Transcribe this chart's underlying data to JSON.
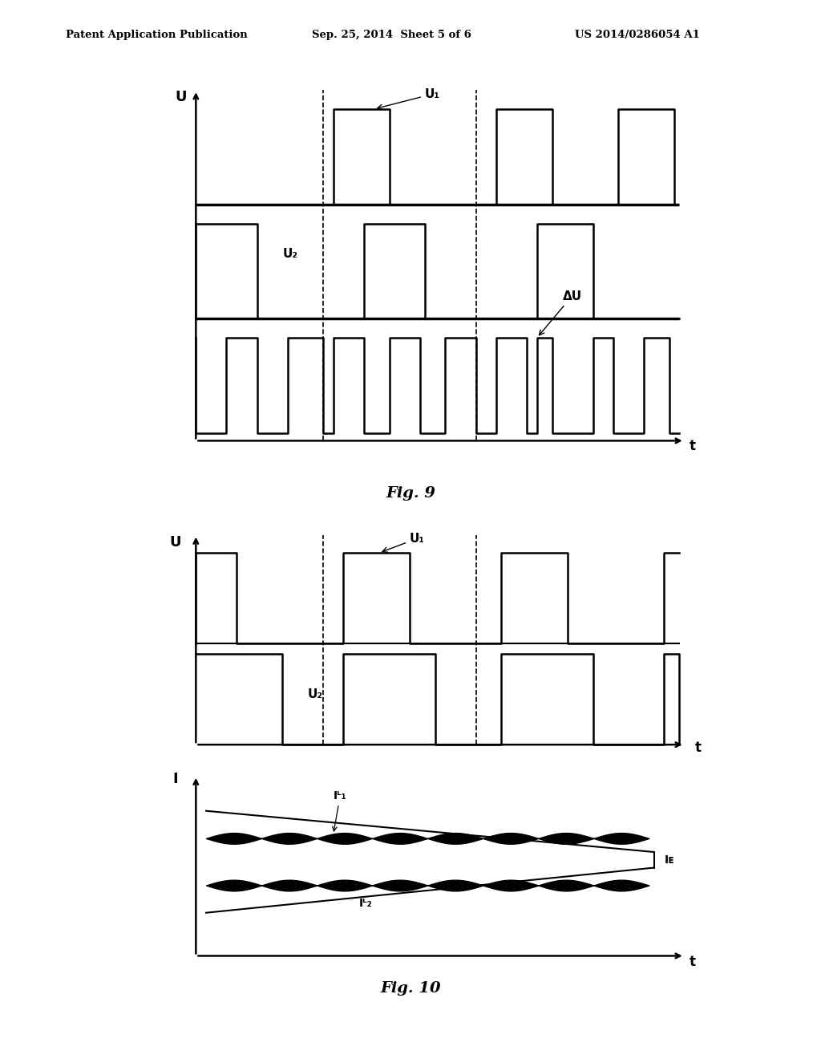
{
  "bg_color": "#ffffff",
  "header_left": "Patent Application Publication",
  "header_center": "Sep. 25, 2014  Sheet 5 of 6",
  "header_right": "US 2014/0286054 A1",
  "fig9_label": "Fig. 9",
  "fig10_label": "Fig. 10",
  "fig9_U_label": "U",
  "fig9_t_label": "t",
  "fig9_U1_label": "U₁",
  "fig9_U2_label": "U₂",
  "fig9_deltaU_label": "ΔU",
  "fig10_U_label": "U",
  "fig10_t_label": "t",
  "fig10_U1_label": "U₁",
  "fig10_U2_label": "U₂",
  "fig10_I_label": "I",
  "fig10_t2_label": "t",
  "fig10_IL1_label": "Iᴸ₁",
  "fig10_IL2_label": "Iᴸ₂",
  "fig10_IE_label": "Iᴇ"
}
